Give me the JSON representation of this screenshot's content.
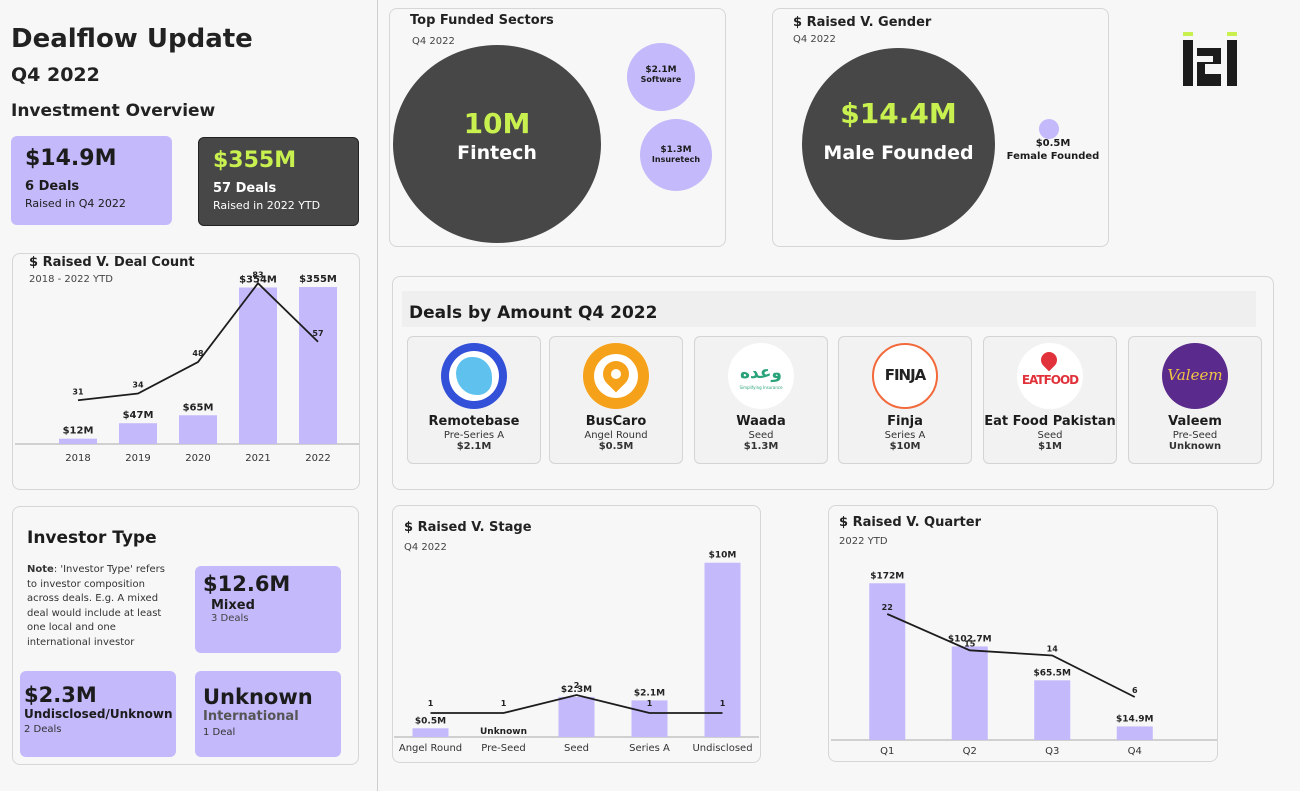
{
  "header": {
    "title": "Dealflow Update",
    "subtitle": "Q4 2022",
    "section": "Investment Overview",
    "logo_text": "i2i"
  },
  "kpis": [
    {
      "value": "$14.9M",
      "deals": "6 Deals",
      "caption": "Raised in Q4 2022"
    },
    {
      "value": "$355M",
      "deals": "57 Deals",
      "caption": "Raised in 2022 YTD"
    }
  ],
  "colors": {
    "purple": "#c3b9fb",
    "dark": "#474747",
    "lime": "#c8f04f"
  },
  "chart_data": [
    {
      "id": "raised_v_deal_count",
      "type": "bar",
      "title": "$ Raised V. Deal Count",
      "subtitle": "2018 - 2022 YTD",
      "categories": [
        "2018",
        "2019",
        "2020",
        "2021",
        "2022"
      ],
      "series": [
        {
          "values": [
            12,
            47,
            65,
            354,
            355
          ],
          "labels": [
            "$12M",
            "$47M",
            "$65M",
            "$354M",
            "$355M"
          ]
        },
        {
          "type": "line",
          "values": [
            31,
            34,
            48,
            83,
            57
          ]
        }
      ],
      "ylim": [
        0,
        380
      ]
    },
    {
      "id": "top_funded_sectors",
      "type": "bubble",
      "title": "Top Funded Sectors",
      "subtitle": "Q4 2022",
      "items": [
        {
          "label": "Fintech",
          "value_label": "10M",
          "value": 10
        },
        {
          "label": "Software",
          "value_label": "$2.1M",
          "value": 2.1
        },
        {
          "label": "Insuretech",
          "value_label": "$1.3M",
          "value": 1.3
        }
      ]
    },
    {
      "id": "raised_v_gender",
      "type": "bubble",
      "title": "$ Raised V. Gender",
      "subtitle": "Q4 2022",
      "items": [
        {
          "label": "Male Founded",
          "value_label": "$14.4M",
          "value": 14.4
        },
        {
          "label": "Female Founded",
          "value_label": "$0.5M",
          "value": 0.5
        }
      ]
    },
    {
      "id": "raised_v_stage",
      "type": "bar",
      "title": "$ Raised V. Stage",
      "subtitle": "Q4 2022",
      "categories": [
        "Angel Round",
        "Pre-Seed",
        "Seed",
        "Series A",
        "Undisclosed"
      ],
      "series": [
        {
          "values": [
            0.5,
            0,
            2.3,
            2.1,
            10
          ],
          "labels": [
            "$0.5M",
            "Unknown",
            "$2.3M",
            "$2.1M",
            "$10M"
          ]
        },
        {
          "type": "line",
          "values": [
            1,
            1,
            2,
            1,
            1
          ]
        }
      ],
      "ylim": [
        0,
        10.5
      ]
    },
    {
      "id": "raised_v_quarter",
      "type": "bar",
      "title": "$ Raised V. Quarter",
      "subtitle": "2022 YTD",
      "categories": [
        "Q1",
        "Q2",
        "Q3",
        "Q4"
      ],
      "series": [
        {
          "values": [
            172,
            102.7,
            65.5,
            14.9
          ],
          "labels": [
            "$172M",
            "$102.7M",
            "$65.5M",
            "$14.9M"
          ]
        },
        {
          "type": "line",
          "values": [
            22,
            15,
            14,
            6
          ]
        }
      ],
      "ylim": [
        0,
        180
      ]
    }
  ],
  "deals_section": {
    "title": "Deals by Amount Q4 2022",
    "deals": [
      {
        "name": "Remotebase",
        "stage": "Pre-Series A",
        "amount": "$2.1M",
        "logo_icon": "remotebase-logo"
      },
      {
        "name": "BusCaro",
        "stage": "Angel Round",
        "amount": "$0.5M",
        "logo_icon": "buscaro-logo"
      },
      {
        "name": "Waada",
        "stage": "Seed",
        "amount": "$1.3M",
        "logo_icon": "waada-logo",
        "logo_text": "وعده",
        "logo_tagline": "Simplifying Insurance"
      },
      {
        "name": "Finja",
        "stage": "Series A",
        "amount": "$10M",
        "logo_icon": "finja-logo",
        "logo_text": "FINJA"
      },
      {
        "name": "Eat Food Pakistan",
        "stage": "Seed",
        "amount": "$1M",
        "logo_icon": "eatfood-logo",
        "logo_text": "EATFOOD"
      },
      {
        "name": "Valeem",
        "stage": "Pre-Seed",
        "amount": "Unknown",
        "logo_icon": "valeem-logo",
        "logo_text": "Valeem"
      }
    ]
  },
  "investor_type": {
    "title": "Investor Type",
    "note_label": "Note",
    "note_text": ": 'Investor Type' refers to investor composition across deals. E.g. A mixed deal would include at least one local and one international investor",
    "boxes": [
      {
        "value": "$12.6M",
        "label": "Mixed",
        "deals": "3 Deals"
      },
      {
        "value": "$2.3M",
        "label": "Undisclosed/Unknown",
        "deals": "2 Deals"
      },
      {
        "value": "Unknown",
        "label": "International",
        "deals": "1 Deal"
      }
    ]
  }
}
